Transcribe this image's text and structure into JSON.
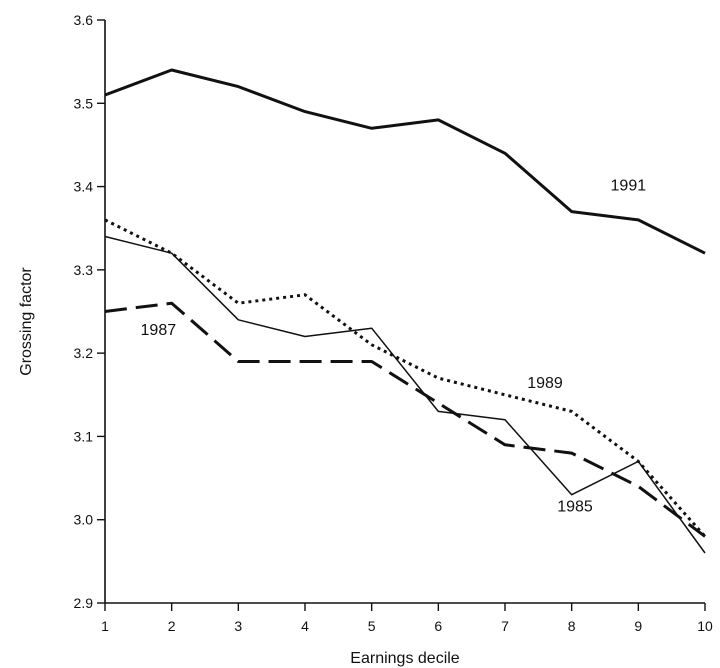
{
  "chart_data": {
    "type": "line",
    "xlabel": "Earnings decile",
    "ylabel": "Grossing factor",
    "x": [
      1,
      2,
      3,
      4,
      5,
      6,
      7,
      8,
      9,
      10
    ],
    "xlim": [
      1,
      10
    ],
    "ylim": [
      2.9,
      3.6
    ],
    "yticks": [
      "2.9",
      "3.0",
      "3.1",
      "3.2",
      "3.3",
      "3.4",
      "3.5",
      "3.6"
    ],
    "xticks": [
      "1",
      "2",
      "3",
      "4",
      "5",
      "6",
      "7",
      "8",
      "9",
      "10"
    ],
    "grid": false,
    "legend": "inline labels",
    "series": [
      {
        "name": "1991",
        "style": "solid-thick",
        "values": [
          3.51,
          3.54,
          3.52,
          3.49,
          3.47,
          3.48,
          3.44,
          3.37,
          3.36,
          3.32
        ]
      },
      {
        "name": "1989",
        "style": "dotted",
        "values": [
          3.36,
          3.32,
          3.26,
          3.27,
          3.21,
          3.17,
          3.15,
          3.13,
          3.07,
          2.98
        ]
      },
      {
        "name": "1985",
        "style": "solid-thin",
        "values": [
          3.34,
          3.32,
          3.24,
          3.22,
          3.23,
          3.13,
          3.12,
          3.03,
          3.07,
          2.96
        ]
      },
      {
        "name": "1987",
        "style": "dashed",
        "values": [
          3.25,
          3.26,
          3.19,
          3.19,
          3.19,
          3.14,
          3.09,
          3.08,
          3.04,
          2.98
        ]
      }
    ],
    "color": "#111111"
  }
}
